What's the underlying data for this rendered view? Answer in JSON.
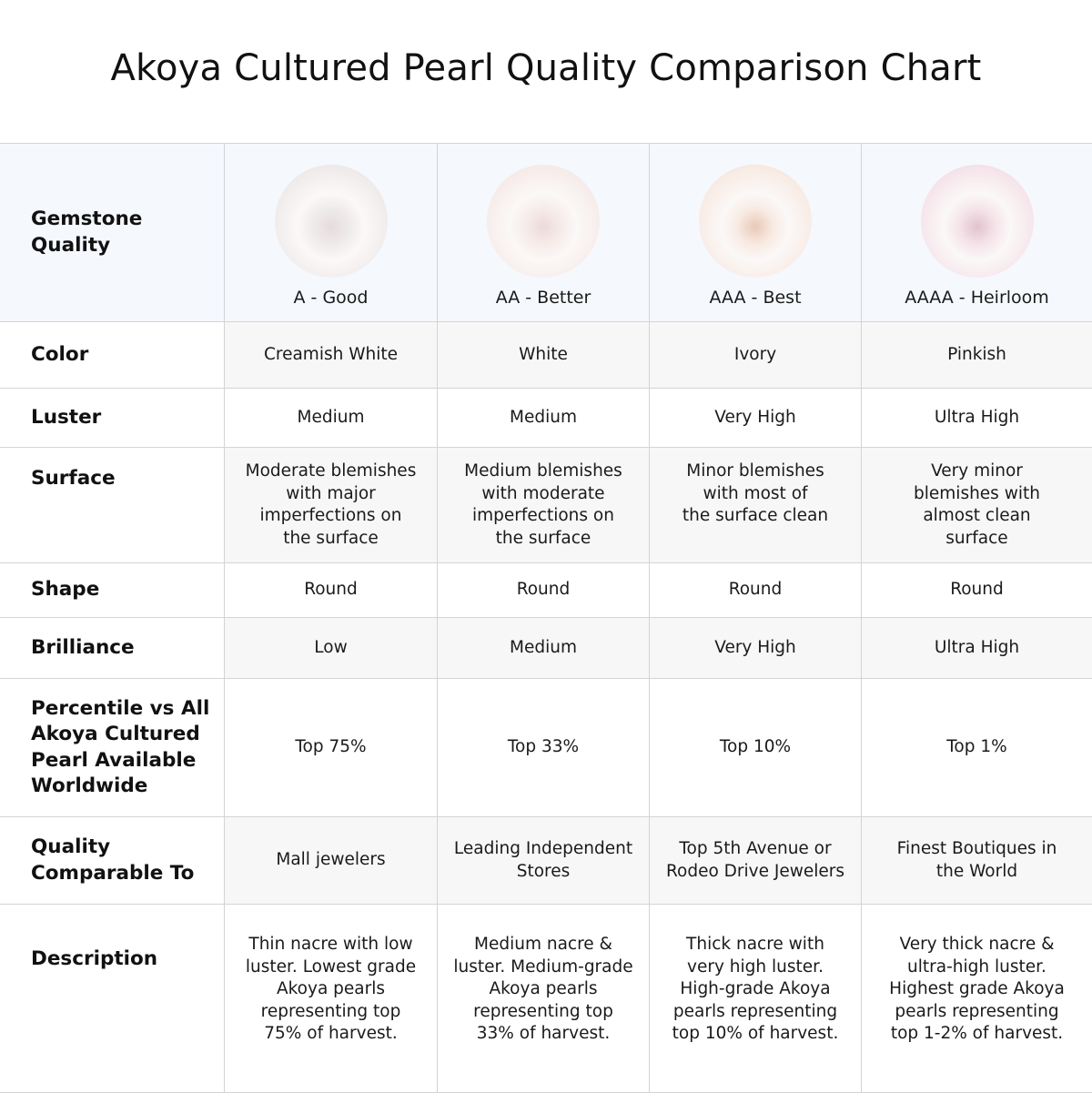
{
  "title": "Akoya Cultured Pearl Quality Comparison Chart",
  "header_label": "Gemstone\nQuality",
  "grades": [
    {
      "name": "A - Good",
      "pearl_color": "#efebeb",
      "pearl_tint": "#e6dcdc"
    },
    {
      "name": "AA - Better",
      "pearl_color": "#f6ecea",
      "pearl_tint": "#ecdad6"
    },
    {
      "name": "AAA - Best",
      "pearl_color": "#f8ebe4",
      "pearl_tint": "#e9c9b6"
    },
    {
      "name": "AAAA - Heirloom",
      "pearl_color": "#f5e4ea",
      "pearl_tint": "#e2c3cc"
    }
  ],
  "rows": [
    {
      "label": "Color",
      "values": [
        "Creamish White",
        "White",
        "Ivory",
        "Pinkish"
      ]
    },
    {
      "label": "Luster",
      "values": [
        "Medium",
        "Medium",
        "Very High",
        "Ultra High"
      ]
    },
    {
      "label": "Surface",
      "values": [
        "Moderate blemishes\nwith major\nimperfections on\nthe surface",
        "Medium blemishes\nwith moderate\nimperfections on\nthe surface",
        "Minor blemishes\nwith most of\nthe surface clean",
        "Very minor\nblemishes with\nalmost clean\nsurface"
      ]
    },
    {
      "label": "Shape",
      "values": [
        "Round",
        "Round",
        "Round",
        "Round"
      ]
    },
    {
      "label": "Brilliance",
      "values": [
        "Low",
        "Medium",
        "Very High",
        "Ultra High"
      ]
    },
    {
      "label": "Percentile vs All\nAkoya Cultured\nPearl Available\nWorldwide",
      "values": [
        "Top 75%",
        "Top 33%",
        "Top 10%",
        "Top 1%"
      ]
    },
    {
      "label": "Quality\nComparable To",
      "values": [
        "Mall jewelers",
        "Leading Independent\nStores",
        "Top 5th Avenue or\nRodeo Drive Jewelers",
        "Finest Boutiques in\nthe World"
      ]
    },
    {
      "label": "Description",
      "values": [
        "Thin nacre with low\nluster. Lowest grade\nAkoya pearls\nrepresenting top\n75% of harvest.",
        "Medium nacre &\nluster. Medium-grade\nAkoya pearls\nrepresenting top\n33% of harvest.",
        "Thick nacre with\nvery high luster.\nHigh-grade Akoya\npearls representing\ntop 10% of harvest.",
        "Very thick nacre &\nultra-high luster.\nHighest grade Akoya\npearls representing\ntop 1-2% of harvest."
      ]
    }
  ],
  "colors": {
    "header_bg": "#f5f8fd",
    "alt_row_bg": "#f7f7f7",
    "border": "#d4d4d4"
  }
}
